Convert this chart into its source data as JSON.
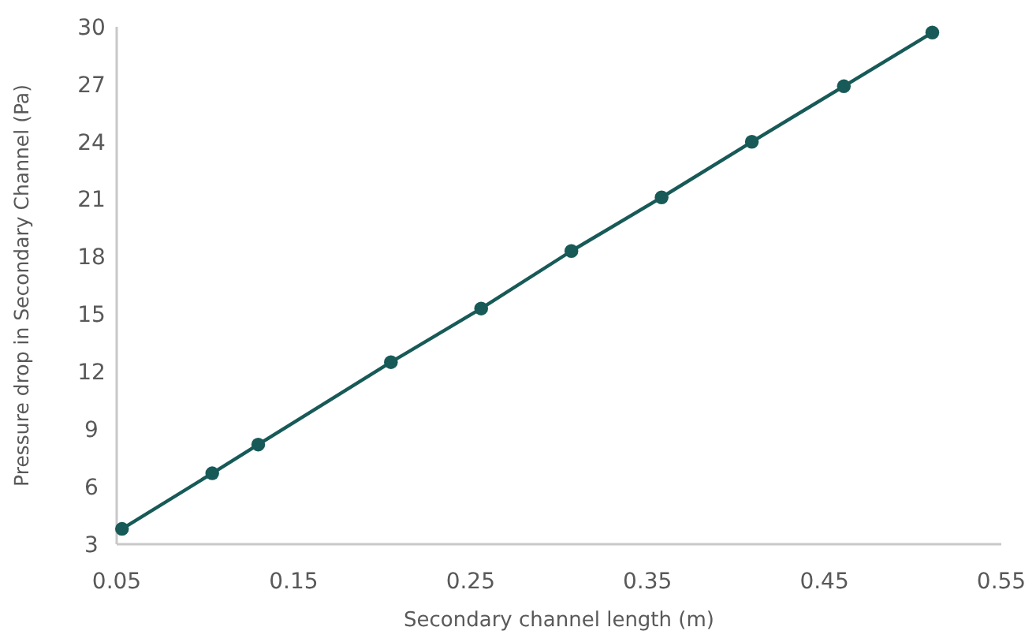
{
  "chart_data": {
    "type": "line",
    "xlabel": "Secondary channel length (m)",
    "ylabel": "Pressure drop in Secondary Channel (Pa)",
    "x": [
      0.053,
      0.104,
      0.13,
      0.205,
      0.256,
      0.307,
      0.358,
      0.409,
      0.461,
      0.511
    ],
    "series": [
      {
        "color": "#175a58",
        "values": [
          3.8,
          6.7,
          8.2,
          12.5,
          15.3,
          18.3,
          21.1,
          24.0,
          26.9,
          29.7
        ]
      }
    ],
    "xlim": [
      0.05,
      0.55
    ],
    "xticks": [
      0.05,
      0.15,
      0.25,
      0.35,
      0.45,
      0.55
    ],
    "ylim": [
      3,
      30
    ],
    "yticks": [
      3,
      6,
      9,
      12,
      15,
      18,
      21,
      24,
      27,
      30
    ],
    "grid": false,
    "marker": "circle",
    "line_style": "solid"
  }
}
